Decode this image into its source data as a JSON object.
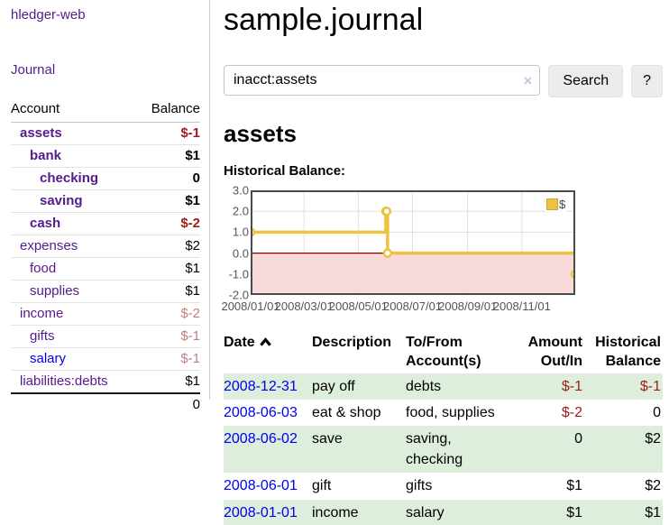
{
  "app": {
    "title": "hledger-web",
    "journal_link": "Journal"
  },
  "sidebar": {
    "account_header": "Account",
    "balance_header": "Balance",
    "rows": [
      {
        "account": "assets",
        "balance": "$-1"
      },
      {
        "account": "bank",
        "balance": "$1"
      },
      {
        "account": "checking",
        "balance": "0"
      },
      {
        "account": "saving",
        "balance": "$1"
      },
      {
        "account": "cash",
        "balance": "$-2"
      },
      {
        "account": "expenses",
        "balance": "$2"
      },
      {
        "account": "food",
        "balance": "$1"
      },
      {
        "account": "supplies",
        "balance": "$1"
      },
      {
        "account": "income",
        "balance": "$-2"
      },
      {
        "account": "gifts",
        "balance": "$-1"
      },
      {
        "account": "salary",
        "balance": "$-1"
      },
      {
        "account": "liabilities:debts",
        "balance": "$1"
      }
    ],
    "total": "0"
  },
  "main": {
    "title": "sample.journal",
    "search": {
      "value": "inacct:assets",
      "clear_icon": "×",
      "button": "Search",
      "help_button": "?"
    },
    "account_heading": "assets",
    "section_label": "Historical Balance:"
  },
  "chart_data": {
    "type": "line",
    "step": true,
    "title": "Historical Balance",
    "series": [
      {
        "name": "$",
        "color": "#edc240",
        "points": [
          [
            "2008/01/01",
            1
          ],
          [
            "2008/06/01",
            2
          ],
          [
            "2008/06/02",
            2
          ],
          [
            "2008/06/03",
            0
          ],
          [
            "2008/12/31",
            -1
          ]
        ]
      }
    ],
    "x_range": [
      "2008/01/01",
      "2008/12/31"
    ],
    "x_ticks": [
      "2008/01/01",
      "2008/03/01",
      "2008/05/01",
      "2008/07/01",
      "2008/09/01",
      "2008/11/01"
    ],
    "y_ticks": [
      3,
      2,
      1,
      0,
      -1,
      -2
    ],
    "y_tick_labels": [
      "3.0",
      "2.0",
      "1.0",
      "0.0",
      "-1.0",
      "-2.0"
    ],
    "ylim": [
      -2,
      3
    ],
    "grid": true,
    "legend_position": "top-right",
    "negative_region_color": "#f9dada",
    "zero_line_color": "#8b0000",
    "grid_color": "#e0e0e0",
    "border_color": "#4a4a4a"
  },
  "register": {
    "columns": [
      "Date",
      "Description",
      "To/From Account(s)",
      "Amount Out/In",
      "Historical Balance"
    ],
    "rows": [
      {
        "date": "2008-12-31",
        "description": "pay off",
        "accounts": "debts",
        "amount": "$-1",
        "balance": "$-1"
      },
      {
        "date": "2008-06-03",
        "description": "eat & shop",
        "accounts": "food, supplies",
        "amount": "$-2",
        "balance": "0"
      },
      {
        "date": "2008-06-02",
        "description": "save",
        "accounts": "saving, checking",
        "amount": "0",
        "balance": "$2"
      },
      {
        "date": "2008-06-01",
        "description": "gift",
        "accounts": "gifts",
        "amount": "$1",
        "balance": "$2"
      },
      {
        "date": "2008-01-01",
        "description": "income",
        "accounts": "salary",
        "amount": "$1",
        "balance": "$1"
      }
    ]
  }
}
